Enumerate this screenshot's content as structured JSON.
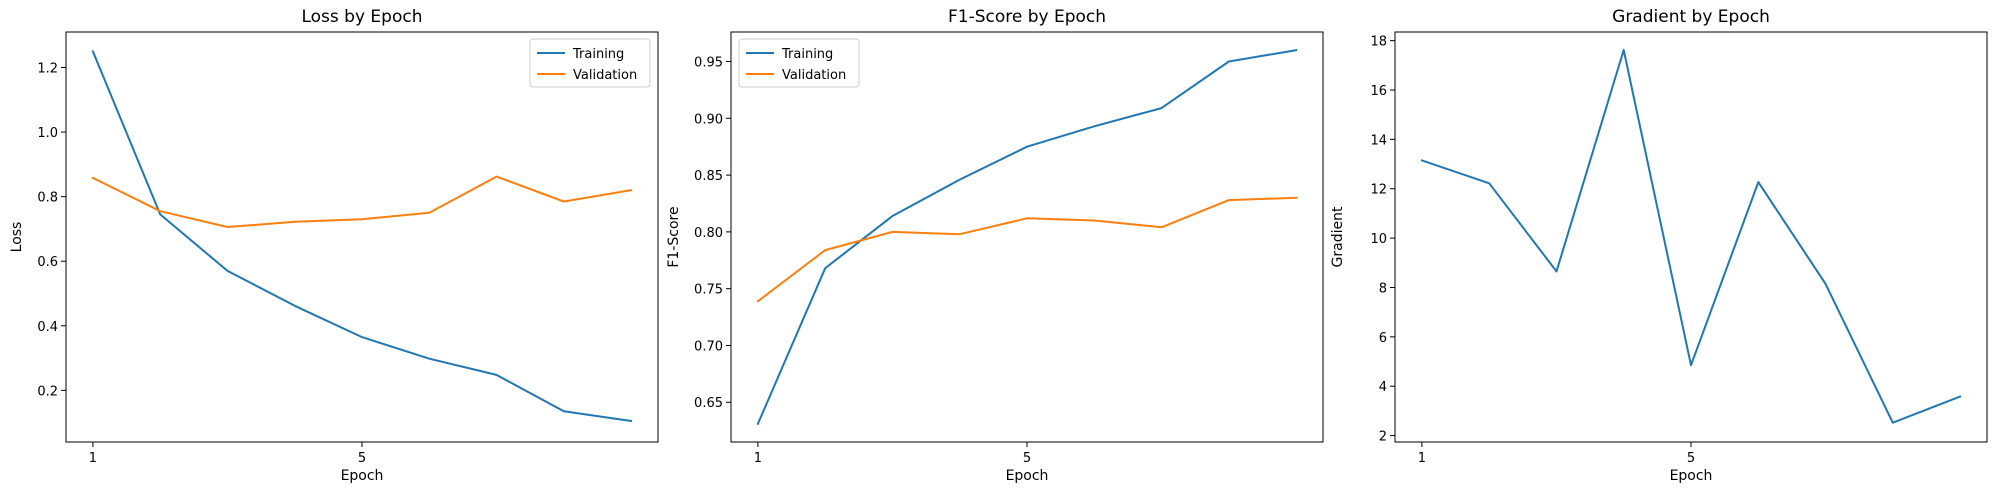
{
  "chart_data": [
    {
      "type": "line",
      "title": "Loss by Epoch",
      "xlabel": "Epoch",
      "ylabel": "Loss",
      "x": [
        1,
        2,
        3,
        4,
        5,
        6,
        7,
        8,
        9
      ],
      "xticks": [
        1,
        5
      ],
      "xlim": [
        0.6,
        9.4
      ],
      "ylim": [
        0.04,
        1.31
      ],
      "yticks": [
        0.2,
        0.4,
        0.6,
        0.8,
        1.0,
        1.2
      ],
      "ytick_labels": [
        "0.2",
        "0.4",
        "0.6",
        "0.8",
        "1.0",
        "1.2"
      ],
      "legend": "top-right",
      "grid": false,
      "series": [
        {
          "name": "Training",
          "color": "#1f77b4",
          "values": [
            1.25,
            0.745,
            0.57,
            0.462,
            0.365,
            0.298,
            0.248,
            0.135,
            0.105
          ]
        },
        {
          "name": "Validation",
          "color": "#ff7f0e",
          "values": [
            0.858,
            0.755,
            0.706,
            0.722,
            0.73,
            0.75,
            0.862,
            0.785,
            0.82
          ]
        }
      ]
    },
    {
      "type": "line",
      "title": "F1-Score by Epoch",
      "xlabel": "Epoch",
      "ylabel": "F1-Score",
      "x": [
        1,
        2,
        3,
        4,
        5,
        6,
        7,
        8,
        9
      ],
      "xticks": [
        1,
        5
      ],
      "xlim": [
        0.6,
        9.4
      ],
      "ylim": [
        0.615,
        0.976
      ],
      "yticks": [
        0.65,
        0.7,
        0.75,
        0.8,
        0.85,
        0.9,
        0.95
      ],
      "ytick_labels": [
        "0.65",
        "0.70",
        "0.75",
        "0.80",
        "0.85",
        "0.90",
        "0.95"
      ],
      "legend": "top-left",
      "grid": false,
      "series": [
        {
          "name": "Training",
          "color": "#1f77b4",
          "values": [
            0.631,
            0.768,
            0.814,
            0.846,
            0.875,
            0.893,
            0.909,
            0.95,
            0.96
          ]
        },
        {
          "name": "Validation",
          "color": "#ff7f0e",
          "values": [
            0.739,
            0.784,
            0.8,
            0.798,
            0.812,
            0.81,
            0.804,
            0.828,
            0.83
          ]
        }
      ]
    },
    {
      "type": "line",
      "title": "Gradient by Epoch",
      "xlabel": "Epoch",
      "ylabel": "Gradient",
      "x": [
        1,
        2,
        3,
        4,
        5,
        6,
        7,
        8,
        9
      ],
      "xticks": [
        1,
        5
      ],
      "xlim": [
        0.6,
        9.4
      ],
      "ylim": [
        1.74,
        18.35
      ],
      "yticks": [
        2,
        4,
        6,
        8,
        10,
        12,
        14,
        16,
        18
      ],
      "ytick_labels": [
        "2",
        "4",
        "6",
        "8",
        "10",
        "12",
        "14",
        "16",
        "18"
      ],
      "legend": "none",
      "grid": false,
      "series": [
        {
          "color": "#1f77b4",
          "values": [
            13.15,
            12.22,
            8.65,
            17.62,
            4.85,
            12.27,
            8.15,
            2.52,
            3.58
          ]
        }
      ]
    }
  ]
}
